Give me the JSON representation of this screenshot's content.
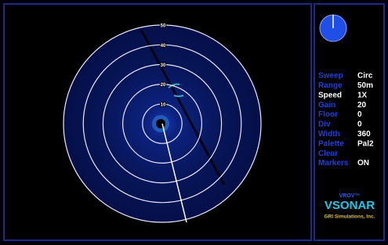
{
  "sonar": {
    "rings": [
      "10",
      "20",
      "30",
      "40",
      "50"
    ]
  },
  "settings": [
    {
      "label": "Sweep",
      "value": "Circ"
    },
    {
      "label": "Range",
      "value": "50m"
    },
    {
      "label": "Speed",
      "value": "1X"
    },
    {
      "label": "Gain",
      "value": "20"
    },
    {
      "label": "Floor",
      "value": "0"
    },
    {
      "label": "Div",
      "value": "0"
    },
    {
      "label": "Width",
      "value": "360"
    },
    {
      "label": "Palette",
      "value": "Pal2"
    },
    {
      "label": "Clear"
    },
    {
      "label": "Markers",
      "value": "ON"
    }
  ],
  "logo": {
    "brand": "VROV™",
    "title": "VSONAR",
    "company": "GRI Simulations, Inc."
  }
}
